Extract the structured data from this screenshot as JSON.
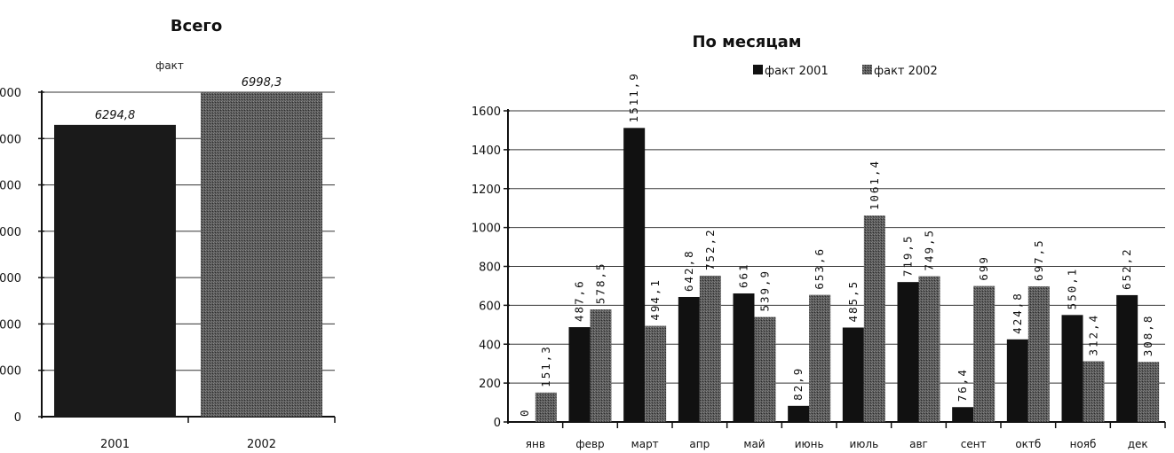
{
  "chart_data": [
    {
      "type": "bar",
      "title": "Всего",
      "subtitle": "факт",
      "categories": [
        "2001",
        "2002"
      ],
      "values": [
        6294.8,
        6998.3
      ],
      "value_labels": [
        "6294,8",
        "6998,3"
      ],
      "yticks": [
        "0",
        "000",
        "000",
        "000",
        "000",
        "000",
        "000",
        "000"
      ],
      "ylim": [
        0,
        7000
      ],
      "grid": true,
      "colors": [
        "#1a1a1a",
        "#4a4a4a"
      ]
    },
    {
      "type": "bar",
      "title": "По месяцам",
      "categories": [
        "янв",
        "февр",
        "март",
        "апр",
        "май",
        "июнь",
        "июль",
        "авг",
        "сент",
        "октб",
        "нояб",
        "дек"
      ],
      "series": [
        {
          "name": "факт 2001",
          "values": [
            0,
            487.6,
            1511.9,
            642.8,
            661,
            82.9,
            485.5,
            719.5,
            76.4,
            424.8,
            550.1,
            652.2
          ],
          "labels": [
            "0",
            "487,6",
            "1511,9",
            "642,8",
            "661",
            "82,9",
            "485,5",
            "719,5",
            "76,4",
            "424,8",
            "550,1",
            "652,2"
          ],
          "color": "#111111"
        },
        {
          "name": "факт 2002",
          "values": [
            151.3,
            578.5,
            494.1,
            752.2,
            539.9,
            653.6,
            1061.4,
            749.5,
            699,
            697.5,
            312.4,
            308.8
          ],
          "labels": [
            "151,3",
            "578,5",
            "494,1",
            "752,2",
            "539,9",
            "653,6",
            "1061,4",
            "749,5",
            "699",
            "697,5",
            "312,4",
            "308,8"
          ],
          "color": "#555555"
        }
      ],
      "yticks": [
        "0",
        "200",
        "400",
        "600",
        "800",
        "1000",
        "1200",
        "1400",
        "1600"
      ],
      "ylim": [
        0,
        1600
      ],
      "grid": true,
      "legend": "top"
    }
  ]
}
